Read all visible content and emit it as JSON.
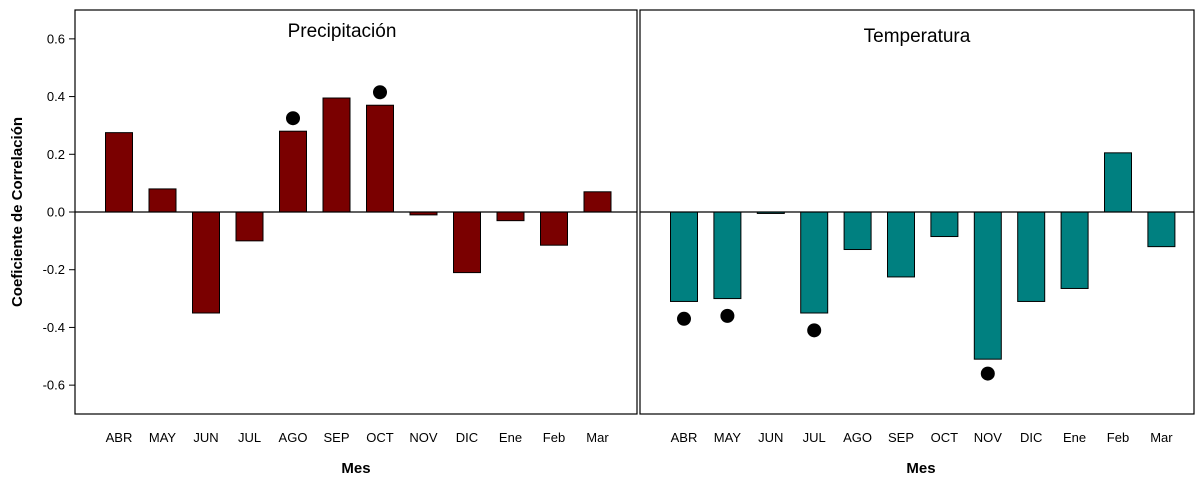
{
  "chart_data": [
    {
      "type": "bar",
      "title": "Precipitación",
      "xlabel": "Mes",
      "ylabel": "Coeficiente de Correlación",
      "ylim": [
        -0.7,
        0.7
      ],
      "yticks": [
        "-0.6",
        "-0.4",
        "-0.2",
        "0.0",
        "0.2",
        "0.4",
        "0.6"
      ],
      "categories": [
        "ABR",
        "MAY",
        "JUN",
        "JUL",
        "AGO",
        "SEP",
        "OCT",
        "NOV",
        "DIC",
        "Ene",
        "Feb",
        "Mar"
      ],
      "values": [
        0.275,
        0.08,
        -0.35,
        -0.1,
        0.28,
        0.395,
        0.37,
        -0.01,
        -0.21,
        -0.03,
        -0.115,
        0.07
      ],
      "significant": [
        false,
        false,
        false,
        false,
        true,
        false,
        true,
        false,
        false,
        false,
        false,
        false
      ],
      "marker_values": [
        null,
        null,
        null,
        null,
        0.325,
        null,
        0.415,
        null,
        null,
        null,
        null,
        null
      ],
      "bar_color": "#7a0000",
      "marker_color": "#000000"
    },
    {
      "type": "bar",
      "title": "Temperatura",
      "xlabel": "Mes",
      "ylabel": "",
      "ylim": [
        -0.7,
        0.7
      ],
      "categories": [
        "ABR",
        "MAY",
        "JUN",
        "JUL",
        "AGO",
        "SEP",
        "OCT",
        "NOV",
        "DIC",
        "Ene",
        "Feb",
        "Mar"
      ],
      "values": [
        -0.31,
        -0.3,
        -0.005,
        -0.35,
        -0.13,
        -0.225,
        -0.085,
        -0.51,
        -0.31,
        -0.265,
        0.205,
        -0.12
      ],
      "significant": [
        true,
        true,
        false,
        true,
        false,
        false,
        false,
        true,
        false,
        false,
        false,
        false
      ],
      "marker_values": [
        -0.37,
        -0.36,
        null,
        -0.41,
        null,
        null,
        null,
        -0.56,
        null,
        null,
        null,
        null
      ],
      "bar_color": "#008080",
      "marker_color": "#000000"
    }
  ]
}
